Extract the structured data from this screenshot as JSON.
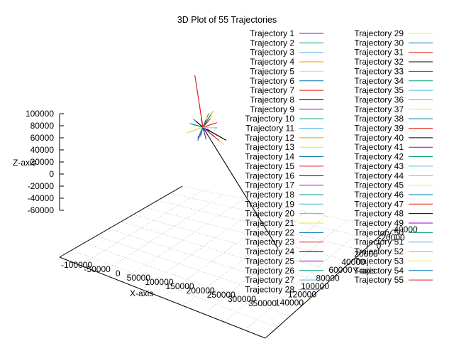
{
  "chart_data": {
    "type": "line",
    "projection": "3d",
    "title": "3D Plot of 55 Trajectories",
    "xlabel": "X-axis",
    "ylabel": "Y-axis",
    "zlabel": "Z-axis",
    "legend_position": "top-right",
    "grid": true,
    "xticks": [
      "-100000",
      "-50000",
      "0",
      "50000",
      "100000",
      "150000",
      "200000",
      "250000",
      "300000",
      "350000"
    ],
    "yticks": [
      "140000",
      "120000",
      "100000",
      "80000",
      "60000",
      "40000",
      "20000",
      "0",
      "-20000",
      "-40000"
    ],
    "zticks": [
      "100000",
      "80000",
      "60000",
      "40000",
      "20000",
      "0",
      "-20000",
      "-40000",
      "-60000"
    ],
    "series": [
      {
        "name": "Trajectory 1",
        "color": "#9400d3"
      },
      {
        "name": "Trajectory 2",
        "color": "#009e73"
      },
      {
        "name": "Trajectory 3",
        "color": "#56b4e9"
      },
      {
        "name": "Trajectory 4",
        "color": "#e69f00"
      },
      {
        "name": "Trajectory 5",
        "color": "#f0e442"
      },
      {
        "name": "Trajectory 6",
        "color": "#0072b2"
      },
      {
        "name": "Trajectory 7",
        "color": "#e51e10"
      },
      {
        "name": "Trajectory 8",
        "color": "#000000"
      },
      {
        "name": "Trajectory 9",
        "color": "#9400d3"
      },
      {
        "name": "Trajectory 10",
        "color": "#009e73"
      },
      {
        "name": "Trajectory 11",
        "color": "#56b4e9"
      },
      {
        "name": "Trajectory 12",
        "color": "#e69f00"
      },
      {
        "name": "Trajectory 13",
        "color": "#f0e442"
      },
      {
        "name": "Trajectory 14",
        "color": "#0072b2"
      },
      {
        "name": "Trajectory 15",
        "color": "#e51e10"
      },
      {
        "name": "Trajectory 16",
        "color": "#000000"
      },
      {
        "name": "Trajectory 17",
        "color": "#9400d3"
      },
      {
        "name": "Trajectory 18",
        "color": "#009e73"
      },
      {
        "name": "Trajectory 19",
        "color": "#56b4e9"
      },
      {
        "name": "Trajectory 20",
        "color": "#e69f00"
      },
      {
        "name": "Trajectory 21",
        "color": "#f0e442"
      },
      {
        "name": "Trajectory 22",
        "color": "#0072b2"
      },
      {
        "name": "Trajectory 23",
        "color": "#e51e10"
      },
      {
        "name": "Trajectory 24",
        "color": "#000000"
      },
      {
        "name": "Trajectory 25",
        "color": "#9400d3"
      },
      {
        "name": "Trajectory 26",
        "color": "#009e73"
      },
      {
        "name": "Trajectory 27",
        "color": "#56b4e9"
      },
      {
        "name": "Trajectory 28",
        "color": "#e69f00"
      },
      {
        "name": "Trajectory 29",
        "color": "#f0e442"
      },
      {
        "name": "Trajectory 30",
        "color": "#0072b2"
      },
      {
        "name": "Trajectory 31",
        "color": "#e51e10"
      },
      {
        "name": "Trajectory 32",
        "color": "#000000"
      },
      {
        "name": "Trajectory 33",
        "color": "#9400d3"
      },
      {
        "name": "Trajectory 34",
        "color": "#009e73"
      },
      {
        "name": "Trajectory 35",
        "color": "#56b4e9"
      },
      {
        "name": "Trajectory 36",
        "color": "#e69f00"
      },
      {
        "name": "Trajectory 37",
        "color": "#f0e442"
      },
      {
        "name": "Trajectory 38",
        "color": "#0072b2"
      },
      {
        "name": "Trajectory 39",
        "color": "#e51e10"
      },
      {
        "name": "Trajectory 40",
        "color": "#000000"
      },
      {
        "name": "Trajectory 41",
        "color": "#9400d3"
      },
      {
        "name": "Trajectory 42",
        "color": "#009e73"
      },
      {
        "name": "Trajectory 43",
        "color": "#56b4e9"
      },
      {
        "name": "Trajectory 44",
        "color": "#e69f00"
      },
      {
        "name": "Trajectory 45",
        "color": "#f0e442"
      },
      {
        "name": "Trajectory 46",
        "color": "#0072b2"
      },
      {
        "name": "Trajectory 47",
        "color": "#e51e10"
      },
      {
        "name": "Trajectory 48",
        "color": "#000000"
      },
      {
        "name": "Trajectory 49",
        "color": "#9400d3"
      },
      {
        "name": "Trajectory 50",
        "color": "#009e73"
      },
      {
        "name": "Trajectory 51",
        "color": "#56b4e9"
      },
      {
        "name": "Trajectory 52",
        "color": "#e69f00"
      },
      {
        "name": "Trajectory 53",
        "color": "#f0e442"
      },
      {
        "name": "Trajectory 54",
        "color": "#0072b2"
      },
      {
        "name": "Trajectory 55",
        "color": "#e51e10"
      }
    ]
  }
}
